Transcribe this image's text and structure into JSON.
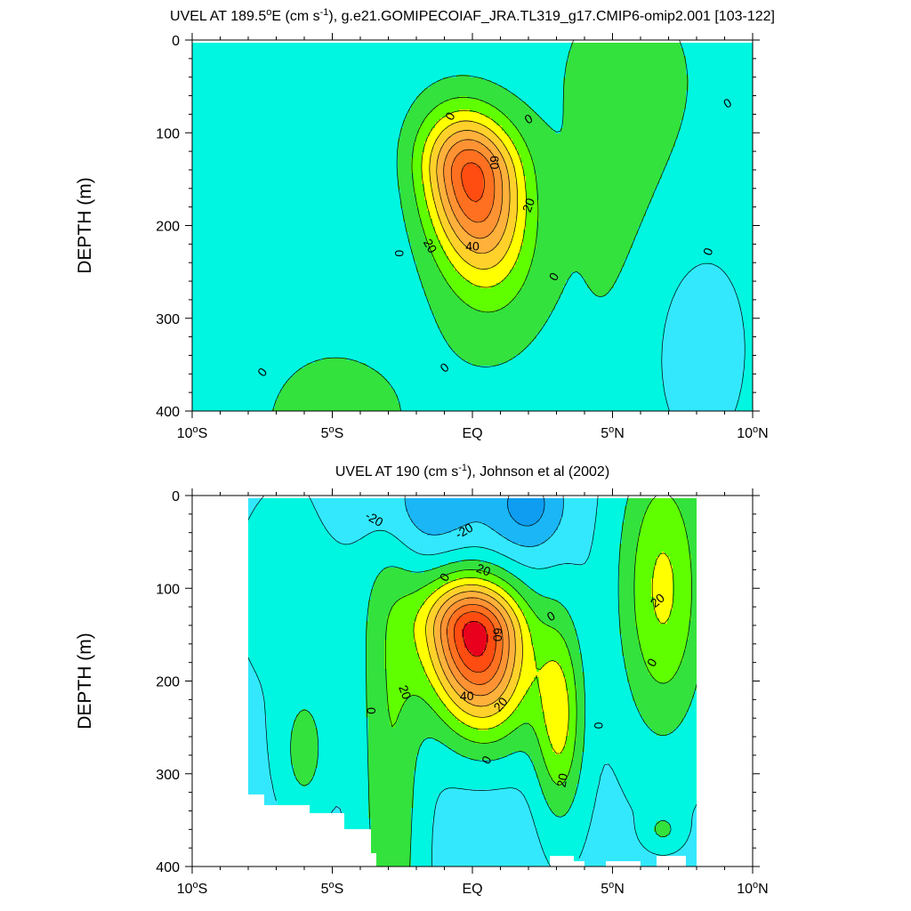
{
  "chart_data": [
    {
      "type": "contour",
      "id": "model",
      "title": {
        "main": "UVEL AT 189.5",
        "deg_sup": "o",
        "after_deg": "E (cm s",
        "unit_sup": "-1",
        "rest": "), g.e21.GOMIPECOIAF_JRA.TL319_g17.CMIP6-omip2.001 [103-122]"
      },
      "xlabel": "",
      "ylabel": "DEPTH (m)",
      "xlim": [
        -10,
        10
      ],
      "ylim": [
        0,
        400
      ],
      "y_reversed": true,
      "data_extent": {
        "lat": [
          -10,
          10
        ],
        "depth": [
          0,
          400
        ]
      },
      "x_ticks": [
        {
          "value": -10,
          "num": "10",
          "deg": "o",
          "hemi": "S"
        },
        {
          "value": -5,
          "num": "5",
          "deg": "o",
          "hemi": "S"
        },
        {
          "value": 0,
          "num": "EQ",
          "deg": "",
          "hemi": ""
        },
        {
          "value": 5,
          "num": "5",
          "deg": "o",
          "hemi": "N"
        },
        {
          "value": 10,
          "num": "10",
          "deg": "o",
          "hemi": "N"
        }
      ],
      "y_ticks": [
        {
          "value": 0,
          "label": "0"
        },
        {
          "value": 100,
          "label": "100"
        },
        {
          "value": 200,
          "label": "200"
        },
        {
          "value": 300,
          "label": "300"
        },
        {
          "value": 400,
          "label": "400"
        }
      ],
      "contour_interval": 10,
      "contour_levels": [
        -30,
        -20,
        -10,
        0,
        10,
        20,
        30,
        40,
        50,
        60,
        70,
        80
      ],
      "core": {
        "lat": 0.0,
        "depth": 148,
        "value": 75
      },
      "contour_labels": [
        {
          "text": "0",
          "lat": -0.8,
          "depth": 82,
          "angle": -60
        },
        {
          "text": "0",
          "lat": 2.0,
          "depth": 85,
          "angle": -30
        },
        {
          "text": "0",
          "lat": 9.1,
          "depth": 68,
          "angle": -30
        },
        {
          "text": "60",
          "lat": 0.8,
          "depth": 132,
          "angle": 90
        },
        {
          "text": "20",
          "lat": 2.0,
          "depth": 178,
          "angle": -70
        },
        {
          "text": "20",
          "lat": -1.5,
          "depth": 222,
          "angle": 60
        },
        {
          "text": "40",
          "lat": 0.0,
          "depth": 222,
          "angle": 0
        },
        {
          "text": "0",
          "lat": -2.6,
          "depth": 230,
          "angle": 90
        },
        {
          "text": "0",
          "lat": 8.4,
          "depth": 228,
          "angle": -70
        },
        {
          "text": "0",
          "lat": 2.9,
          "depth": 255,
          "angle": -60
        },
        {
          "text": "0",
          "lat": -1.0,
          "depth": 353,
          "angle": -40
        },
        {
          "text": "0",
          "lat": -7.5,
          "depth": 358,
          "angle": -50
        }
      ]
    },
    {
      "type": "contour",
      "id": "obs",
      "title": {
        "main": "UVEL AT 190 (cm s",
        "deg_sup": "",
        "after_deg": "",
        "unit_sup": "-1",
        "rest": "), Johnson et al (2002)"
      },
      "xlabel": "",
      "ylabel": "DEPTH (m)",
      "xlim": [
        -10,
        10
      ],
      "ylim": [
        0,
        400
      ],
      "y_reversed": true,
      "data_extent": {
        "lat": [
          -8,
          8
        ],
        "depth": [
          0,
          400
        ]
      },
      "x_ticks": [
        {
          "value": -10,
          "num": "10",
          "deg": "o",
          "hemi": "S"
        },
        {
          "value": -5,
          "num": "5",
          "deg": "o",
          "hemi": "S"
        },
        {
          "value": 0,
          "num": "EQ",
          "deg": "",
          "hemi": ""
        },
        {
          "value": 5,
          "num": "5",
          "deg": "o",
          "hemi": "N"
        },
        {
          "value": 10,
          "num": "10",
          "deg": "o",
          "hemi": "N"
        }
      ],
      "y_ticks": [
        {
          "value": 0,
          "label": "0"
        },
        {
          "value": 100,
          "label": "100"
        },
        {
          "value": 200,
          "label": "200"
        },
        {
          "value": 300,
          "label": "300"
        },
        {
          "value": 400,
          "label": "400"
        }
      ],
      "contour_interval": 10,
      "contour_levels": [
        -30,
        -20,
        -10,
        0,
        10,
        20,
        30,
        40,
        50,
        60,
        70,
        80,
        90
      ],
      "core": {
        "lat": 0.0,
        "depth": 148,
        "value": 85
      },
      "contour_labels": [
        {
          "text": "-20",
          "lat": -3.5,
          "depth": 25,
          "angle": 30
        },
        {
          "text": "-20",
          "lat": -0.3,
          "depth": 38,
          "angle": -30
        },
        {
          "text": "20",
          "lat": 0.4,
          "depth": 80,
          "angle": 20
        },
        {
          "text": "0",
          "lat": -1.0,
          "depth": 88,
          "angle": -60
        },
        {
          "text": "0",
          "lat": 2.8,
          "depth": 130,
          "angle": -30
        },
        {
          "text": "20",
          "lat": 6.6,
          "depth": 113,
          "angle": -40
        },
        {
          "text": "60",
          "lat": 0.9,
          "depth": 150,
          "angle": 90
        },
        {
          "text": "0",
          "lat": 6.4,
          "depth": 180,
          "angle": -60
        },
        {
          "text": "20",
          "lat": -2.4,
          "depth": 212,
          "angle": 70
        },
        {
          "text": "40",
          "lat": -0.2,
          "depth": 216,
          "angle": 0
        },
        {
          "text": "20",
          "lat": 1.0,
          "depth": 225,
          "angle": -50
        },
        {
          "text": "0",
          "lat": -3.6,
          "depth": 232,
          "angle": 90
        },
        {
          "text": "0",
          "lat": 4.5,
          "depth": 248,
          "angle": 90
        },
        {
          "text": "0",
          "lat": 0.5,
          "depth": 285,
          "angle": -60
        },
        {
          "text": "20",
          "lat": 3.2,
          "depth": 307,
          "angle": -80
        }
      ]
    }
  ],
  "colors": {
    "u_le_m30": "#0e9df0",
    "u_m30_m20": "#1ab6f6",
    "u_m20_m10": "#33e8fc",
    "u_m10_0": "#00f6e0",
    "u_0_10": "#33e23c",
    "u_10_20": "#5fff00",
    "u_20_30": "#ffff00",
    "u_30_40": "#ffd12a",
    "u_40_50": "#ffb13b",
    "u_50_60": "#ff9333",
    "u_60_70": "#ff7020",
    "u_70_80": "#ff4c10",
    "u_ge_80": "#e8001c"
  }
}
